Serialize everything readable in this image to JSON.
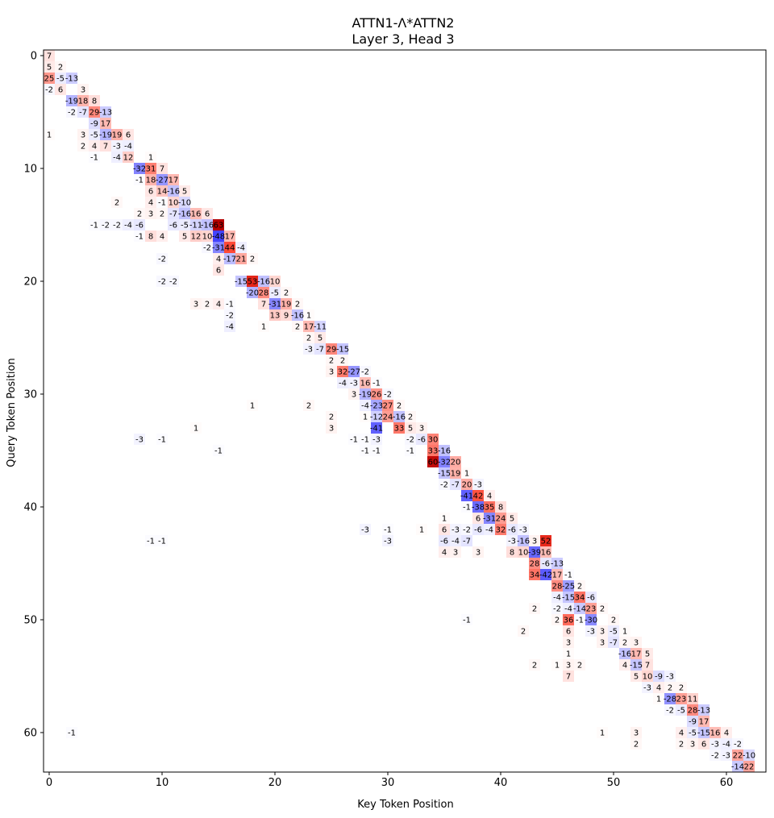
{
  "chart_data": {
    "type": "heatmap",
    "title": "ATTN1-Λ*ATTN2",
    "subtitle": "Layer 3, Head 3",
    "xlabel": "Key Token Position",
    "ylabel": "Query Token Position",
    "xlim": [
      0,
      63
    ],
    "ylim": [
      63,
      0
    ],
    "x_ticks": [
      0,
      10,
      20,
      30,
      40,
      50,
      60
    ],
    "y_ticks": [
      0,
      10,
      20,
      30,
      40,
      50,
      60
    ],
    "color_scale": {
      "negative": "#0000ff",
      "zero": "#ffffff",
      "positive": "#b40000",
      "max_abs": 63
    },
    "cell_labels_scale": "values ×100",
    "cells": [
      [
        0,
        0,
        7
      ],
      [
        1,
        0,
        5
      ],
      [
        1,
        1,
        2
      ],
      [
        2,
        0,
        25
      ],
      [
        2,
        1,
        -5
      ],
      [
        2,
        2,
        -13
      ],
      [
        3,
        0,
        -2
      ],
      [
        3,
        1,
        6
      ],
      [
        3,
        3,
        3
      ],
      [
        4,
        2,
        -19
      ],
      [
        4,
        3,
        18
      ],
      [
        4,
        4,
        8
      ],
      [
        5,
        2,
        -2
      ],
      [
        5,
        3,
        -7
      ],
      [
        5,
        4,
        29
      ],
      [
        5,
        5,
        -13
      ],
      [
        6,
        4,
        -9
      ],
      [
        6,
        5,
        17
      ],
      [
        7,
        0,
        1
      ],
      [
        7,
        3,
        3
      ],
      [
        7,
        4,
        -5
      ],
      [
        7,
        5,
        -19
      ],
      [
        7,
        6,
        19
      ],
      [
        7,
        7,
        6
      ],
      [
        8,
        3,
        2
      ],
      [
        8,
        4,
        4
      ],
      [
        8,
        5,
        7
      ],
      [
        8,
        6,
        -3
      ],
      [
        8,
        7,
        -4
      ],
      [
        9,
        4,
        -1
      ],
      [
        9,
        6,
        -4
      ],
      [
        9,
        7,
        12
      ],
      [
        9,
        9,
        1
      ],
      [
        10,
        8,
        -32
      ],
      [
        10,
        9,
        31
      ],
      [
        10,
        10,
        7
      ],
      [
        11,
        8,
        -1
      ],
      [
        11,
        9,
        18
      ],
      [
        11,
        10,
        -27
      ],
      [
        11,
        11,
        17
      ],
      [
        12,
        9,
        6
      ],
      [
        12,
        10,
        14
      ],
      [
        12,
        11,
        -16
      ],
      [
        12,
        12,
        5
      ],
      [
        13,
        6,
        2
      ],
      [
        13,
        9,
        4
      ],
      [
        13,
        10,
        -1
      ],
      [
        13,
        11,
        10
      ],
      [
        13,
        12,
        -10
      ],
      [
        14,
        8,
        2
      ],
      [
        14,
        9,
        3
      ],
      [
        14,
        10,
        2
      ],
      [
        14,
        11,
        -7
      ],
      [
        14,
        12,
        -16
      ],
      [
        14,
        13,
        16
      ],
      [
        14,
        14,
        6
      ],
      [
        15,
        4,
        -1
      ],
      [
        15,
        5,
        -2
      ],
      [
        15,
        6,
        -2
      ],
      [
        15,
        7,
        -4
      ],
      [
        15,
        8,
        -6
      ],
      [
        15,
        11,
        -6
      ],
      [
        15,
        12,
        -5
      ],
      [
        15,
        13,
        -11
      ],
      [
        15,
        14,
        -16
      ],
      [
        15,
        15,
        63
      ],
      [
        16,
        8,
        -1
      ],
      [
        16,
        9,
        8
      ],
      [
        16,
        10,
        4
      ],
      [
        16,
        12,
        5
      ],
      [
        16,
        13,
        12
      ],
      [
        16,
        14,
        10
      ],
      [
        16,
        15,
        -48
      ],
      [
        16,
        16,
        17
      ],
      [
        17,
        14,
        -2
      ],
      [
        17,
        15,
        -31
      ],
      [
        17,
        16,
        44
      ],
      [
        17,
        17,
        -4
      ],
      [
        18,
        10,
        -2
      ],
      [
        18,
        15,
        4
      ],
      [
        18,
        16,
        -17
      ],
      [
        18,
        17,
        21
      ],
      [
        18,
        18,
        2
      ],
      [
        19,
        15,
        6
      ],
      [
        20,
        10,
        -2
      ],
      [
        20,
        11,
        -2
      ],
      [
        20,
        17,
        -15
      ],
      [
        20,
        18,
        53
      ],
      [
        20,
        19,
        -16
      ],
      [
        20,
        20,
        10
      ],
      [
        21,
        18,
        -20
      ],
      [
        21,
        19,
        28
      ],
      [
        21,
        20,
        -5
      ],
      [
        21,
        21,
        2
      ],
      [
        22,
        13,
        3
      ],
      [
        22,
        14,
        2
      ],
      [
        22,
        15,
        4
      ],
      [
        22,
        16,
        -1
      ],
      [
        22,
        19,
        7
      ],
      [
        22,
        20,
        -31
      ],
      [
        22,
        21,
        19
      ],
      [
        22,
        22,
        2
      ],
      [
        23,
        16,
        -2
      ],
      [
        23,
        20,
        13
      ],
      [
        23,
        21,
        9
      ],
      [
        23,
        22,
        -16
      ],
      [
        23,
        23,
        1
      ],
      [
        24,
        16,
        -4
      ],
      [
        24,
        19,
        1
      ],
      [
        24,
        22,
        2
      ],
      [
        24,
        23,
        17
      ],
      [
        24,
        24,
        -11
      ],
      [
        25,
        23,
        2
      ],
      [
        25,
        24,
        5
      ],
      [
        26,
        23,
        -3
      ],
      [
        26,
        24,
        -7
      ],
      [
        26,
        25,
        29
      ],
      [
        26,
        26,
        -15
      ],
      [
        27,
        25,
        2
      ],
      [
        27,
        26,
        2
      ],
      [
        28,
        25,
        3
      ],
      [
        28,
        26,
        32
      ],
      [
        28,
        27,
        -27
      ],
      [
        28,
        28,
        -2
      ],
      [
        29,
        26,
        -4
      ],
      [
        29,
        27,
        -3
      ],
      [
        29,
        28,
        16
      ],
      [
        29,
        29,
        -1
      ],
      [
        30,
        27,
        3
      ],
      [
        30,
        28,
        -19
      ],
      [
        30,
        29,
        26
      ],
      [
        30,
        30,
        -2
      ],
      [
        31,
        18,
        1
      ],
      [
        31,
        23,
        2
      ],
      [
        31,
        28,
        -4
      ],
      [
        31,
        29,
        -23
      ],
      [
        31,
        30,
        27
      ],
      [
        31,
        31,
        2
      ],
      [
        32,
        25,
        2
      ],
      [
        32,
        28,
        1
      ],
      [
        32,
        29,
        -12
      ],
      [
        32,
        30,
        24
      ],
      [
        32,
        31,
        -16
      ],
      [
        32,
        32,
        2
      ],
      [
        33,
        13,
        1
      ],
      [
        33,
        25,
        3
      ],
      [
        33,
        29,
        -41
      ],
      [
        33,
        31,
        33
      ],
      [
        33,
        32,
        5
      ],
      [
        33,
        33,
        3
      ],
      [
        34,
        8,
        -3
      ],
      [
        34,
        10,
        -1
      ],
      [
        34,
        27,
        -1
      ],
      [
        34,
        28,
        -1
      ],
      [
        34,
        29,
        -3
      ],
      [
        34,
        32,
        -2
      ],
      [
        34,
        33,
        -6
      ],
      [
        34,
        34,
        30
      ],
      [
        35,
        15,
        -1
      ],
      [
        35,
        28,
        -1
      ],
      [
        35,
        29,
        -1
      ],
      [
        35,
        32,
        -1
      ],
      [
        35,
        34,
        33
      ],
      [
        35,
        35,
        -16
      ],
      [
        36,
        34,
        60
      ],
      [
        36,
        35,
        -32
      ],
      [
        36,
        36,
        20
      ],
      [
        37,
        35,
        -15
      ],
      [
        37,
        36,
        19
      ],
      [
        37,
        37,
        1
      ],
      [
        38,
        35,
        -2
      ],
      [
        38,
        36,
        -7
      ],
      [
        38,
        37,
        20
      ],
      [
        38,
        38,
        -3
      ],
      [
        39,
        37,
        -41
      ],
      [
        39,
        38,
        42
      ],
      [
        39,
        39,
        4
      ],
      [
        40,
        37,
        -1
      ],
      [
        40,
        38,
        -38
      ],
      [
        40,
        39,
        35
      ],
      [
        40,
        40,
        8
      ],
      [
        41,
        35,
        1
      ],
      [
        41,
        38,
        6
      ],
      [
        41,
        39,
        -31
      ],
      [
        41,
        40,
        24
      ],
      [
        41,
        41,
        5
      ],
      [
        42,
        28,
        -3
      ],
      [
        42,
        30,
        -1
      ],
      [
        42,
        33,
        1
      ],
      [
        42,
        35,
        6
      ],
      [
        42,
        36,
        -3
      ],
      [
        42,
        37,
        -2
      ],
      [
        42,
        38,
        -6
      ],
      [
        42,
        39,
        -4
      ],
      [
        42,
        40,
        32
      ],
      [
        42,
        41,
        -6
      ],
      [
        42,
        42,
        -3
      ],
      [
        43,
        9,
        -1
      ],
      [
        43,
        10,
        -1
      ],
      [
        43,
        30,
        -3
      ],
      [
        43,
        35,
        -6
      ],
      [
        43,
        36,
        -4
      ],
      [
        43,
        37,
        -7
      ],
      [
        43,
        41,
        -3
      ],
      [
        43,
        42,
        -16
      ],
      [
        43,
        43,
        3
      ],
      [
        43,
        44,
        52
      ],
      [
        44,
        35,
        4
      ],
      [
        44,
        36,
        3
      ],
      [
        44,
        38,
        3
      ],
      [
        44,
        41,
        8
      ],
      [
        44,
        42,
        10
      ],
      [
        44,
        43,
        -39
      ],
      [
        44,
        44,
        16
      ],
      [
        45,
        43,
        28
      ],
      [
        45,
        44,
        -6
      ],
      [
        45,
        45,
        -13
      ],
      [
        46,
        43,
        34
      ],
      [
        46,
        44,
        -42
      ],
      [
        46,
        45,
        17
      ],
      [
        46,
        46,
        -1
      ],
      [
        47,
        45,
        28
      ],
      [
        47,
        46,
        -25
      ],
      [
        47,
        47,
        2
      ],
      [
        48,
        45,
        -4
      ],
      [
        48,
        46,
        -15
      ],
      [
        48,
        47,
        34
      ],
      [
        48,
        48,
        -6
      ],
      [
        49,
        43,
        2
      ],
      [
        49,
        45,
        -2
      ],
      [
        49,
        46,
        -4
      ],
      [
        49,
        47,
        -14
      ],
      [
        49,
        48,
        23
      ],
      [
        49,
        49,
        2
      ],
      [
        50,
        37,
        -1
      ],
      [
        50,
        45,
        2
      ],
      [
        50,
        46,
        36
      ],
      [
        50,
        47,
        -1
      ],
      [
        50,
        48,
        -30
      ],
      [
        50,
        50,
        2
      ],
      [
        51,
        42,
        2
      ],
      [
        51,
        46,
        6
      ],
      [
        51,
        48,
        -3
      ],
      [
        51,
        49,
        3
      ],
      [
        51,
        50,
        -5
      ],
      [
        51,
        51,
        1
      ],
      [
        52,
        46,
        3
      ],
      [
        52,
        49,
        3
      ],
      [
        52,
        50,
        -7
      ],
      [
        52,
        51,
        2
      ],
      [
        52,
        52,
        3
      ],
      [
        53,
        46,
        1
      ],
      [
        53,
        51,
        -16
      ],
      [
        53,
        52,
        17
      ],
      [
        53,
        53,
        5
      ],
      [
        54,
        43,
        2
      ],
      [
        54,
        45,
        1
      ],
      [
        54,
        46,
        3
      ],
      [
        54,
        47,
        2
      ],
      [
        54,
        51,
        4
      ],
      [
        54,
        52,
        -15
      ],
      [
        54,
        53,
        7
      ],
      [
        55,
        46,
        7
      ],
      [
        55,
        52,
        5
      ],
      [
        55,
        53,
        10
      ],
      [
        55,
        54,
        -9
      ],
      [
        55,
        55,
        -3
      ],
      [
        56,
        53,
        -3
      ],
      [
        56,
        54,
        4
      ],
      [
        56,
        55,
        2
      ],
      [
        56,
        56,
        2
      ],
      [
        57,
        54,
        1
      ],
      [
        57,
        55,
        -28
      ],
      [
        57,
        56,
        23
      ],
      [
        57,
        57,
        11
      ],
      [
        58,
        55,
        -2
      ],
      [
        58,
        56,
        -5
      ],
      [
        58,
        57,
        28
      ],
      [
        58,
        58,
        -13
      ],
      [
        59,
        57,
        -9
      ],
      [
        59,
        58,
        17
      ],
      [
        60,
        2,
        -1
      ],
      [
        60,
        49,
        1
      ],
      [
        60,
        52,
        3
      ],
      [
        60,
        56,
        4
      ],
      [
        60,
        57,
        -5
      ],
      [
        60,
        58,
        -15
      ],
      [
        60,
        59,
        16
      ],
      [
        60,
        60,
        4
      ],
      [
        61,
        52,
        2
      ],
      [
        61,
        56,
        2
      ],
      [
        61,
        57,
        3
      ],
      [
        61,
        58,
        6
      ],
      [
        61,
        59,
        -3
      ],
      [
        61,
        60,
        -4
      ],
      [
        61,
        61,
        -2
      ],
      [
        62,
        59,
        -2
      ],
      [
        62,
        60,
        -3
      ],
      [
        62,
        61,
        22
      ],
      [
        62,
        62,
        -10
      ],
      [
        63,
        61,
        -14
      ],
      [
        63,
        62,
        22
      ]
    ]
  }
}
